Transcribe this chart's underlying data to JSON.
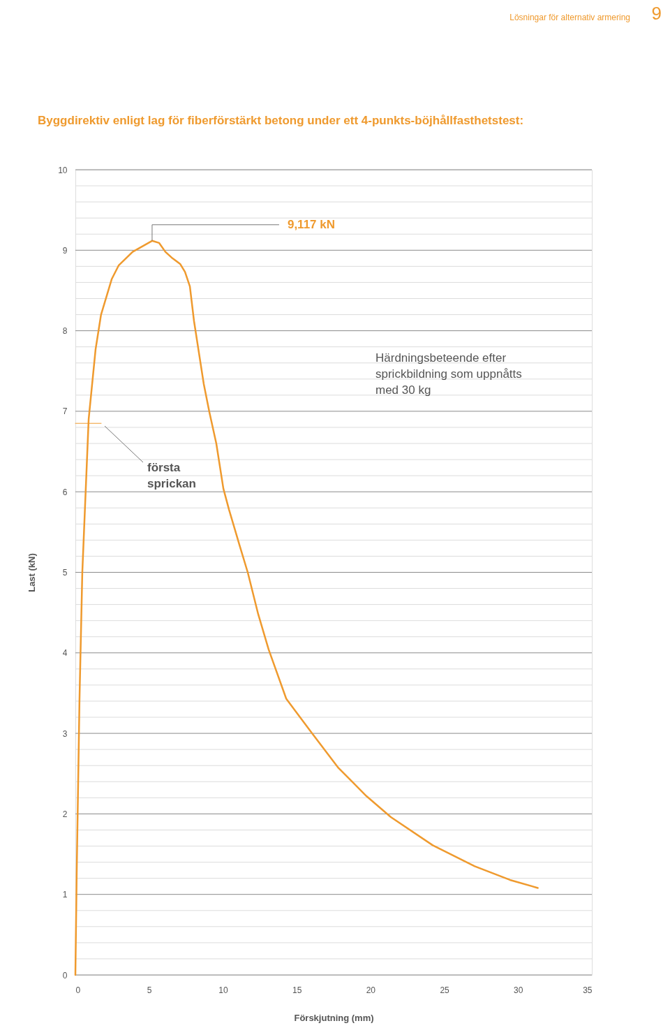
{
  "chart_data": {
    "type": "line",
    "title": "Byggdirektiv enligt lag för fiberförstärkt betong under ett 4-punkts-böjhållfasthetstest:",
    "xlabel": "Förskjutning (mm)",
    "ylabel": "Last (kN)",
    "x": [
      0,
      0.09,
      0.28,
      0.47,
      0.9,
      1.37,
      1.74,
      2.46,
      2.93,
      3.88,
      5.2,
      5.68,
      6.1,
      6.58,
      7.1,
      7.43,
      7.76,
      8.04,
      8.7,
      9.08,
      9.55,
      10.03,
      10.41,
      11.12,
      11.68,
      12.39,
      13.1,
      14.29,
      16.04,
      17.83,
      19.73,
      21.38,
      24.22,
      27.06,
      29.45,
      31.34
    ],
    "series": [
      {
        "color": "#ef9a2e",
        "values": [
          0,
          1.27,
          3.43,
          5.0,
          6.9,
          7.77,
          8.2,
          8.64,
          8.81,
          8.98,
          9.117,
          9.09,
          8.98,
          8.9,
          8.83,
          8.73,
          8.55,
          8.12,
          7.34,
          6.99,
          6.6,
          6.04,
          5.78,
          5.34,
          5.0,
          4.48,
          4.04,
          3.43,
          3.0,
          2.57,
          2.22,
          1.96,
          1.61,
          1.35,
          1.18,
          1.08
        ]
      },
      {
        "type": "line",
        "color": "#ef9a2e",
        "x": [
          0,
          1.75
        ],
        "values": [
          6.85,
          6.85
        ]
      }
    ],
    "xlim": [
      0,
      35
    ],
    "xticks": [
      0,
      5,
      10,
      15,
      20,
      25,
      30,
      35
    ],
    "ylim": [
      0,
      10
    ],
    "yticks": [
      0,
      {
        "value": 0.2,
        "label": null
      },
      {
        "value": 0.4,
        "label": null
      },
      {
        "value": 0.6,
        "label": null
      },
      {
        "value": 0.8,
        "label": null
      },
      1,
      {
        "value": 1.2,
        "label": null
      },
      {
        "value": 1.4,
        "label": null
      },
      {
        "value": 1.6,
        "label": null
      },
      {
        "value": 1.8,
        "label": null
      },
      2,
      {
        "value": 2.2,
        "label": null
      },
      {
        "value": 2.4,
        "label": null
      },
      {
        "value": 2.6,
        "label": null
      },
      {
        "value": 2.8,
        "label": null
      },
      3,
      {
        "value": 3.2,
        "label": null
      },
      {
        "value": 3.4,
        "label": null
      },
      {
        "value": 3.6,
        "label": null
      },
      {
        "value": 3.8,
        "label": null
      },
      4,
      {
        "value": 4.2,
        "label": null
      },
      {
        "value": 4.4,
        "label": null
      },
      {
        "value": 4.6,
        "label": null
      },
      {
        "value": 4.8,
        "label": null
      },
      5,
      {
        "value": 5.2,
        "label": null
      },
      {
        "value": 5.4,
        "label": null
      },
      {
        "value": 5.6,
        "label": null
      },
      {
        "value": 5.8,
        "label": null
      },
      6,
      {
        "value": 6.2,
        "label": null
      },
      {
        "value": 6.4,
        "label": null
      },
      {
        "value": 6.6,
        "label": null
      },
      {
        "value": 6.8,
        "label": null
      },
      7,
      {
        "value": 7.2,
        "label": null
      },
      {
        "value": 7.4,
        "label": null
      },
      {
        "value": 7.6,
        "label": null
      },
      {
        "value": 7.8,
        "label": null
      },
      8,
      {
        "value": 8.2,
        "label": null
      },
      {
        "value": 8.4,
        "label": null
      },
      {
        "value": 8.6,
        "label": null
      },
      {
        "value": 8.8,
        "label": null
      },
      9,
      {
        "value": 9.2,
        "label": null
      },
      {
        "value": 9.4,
        "label": null
      },
      {
        "value": 9.6,
        "label": null
      },
      {
        "value": 9.8,
        "label": null
      },
      10
    ],
    "grid": "y",
    "marker": "none",
    "line_style": "solid",
    "annotations": [
      {
        "text": "9,117 kN",
        "x": 5.2,
        "y": 9.117
      },
      "första sprickan",
      "Härdningsbeteende efter sprickbildning som uppnåtts med 30 kg",
      "Lösningar för alternativ armering",
      "9"
    ]
  }
}
